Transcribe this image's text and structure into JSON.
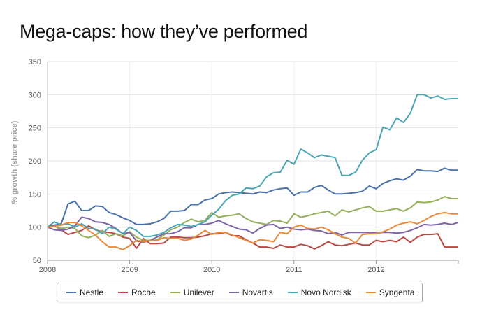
{
  "title": "Mega-caps: how they’ve performed",
  "chart_data": {
    "type": "line",
    "title": "Mega-caps: how they’ve performed",
    "ylabel": "% growth (share price)",
    "xlabel": "",
    "xlim": [
      2008,
      2013
    ],
    "ylim": [
      50,
      350
    ],
    "yticks": [
      50,
      100,
      150,
      200,
      250,
      300,
      350
    ],
    "xticks": [
      2008,
      2009,
      2010,
      2011,
      2012
    ],
    "grid": "horizontal",
    "legend_position": "bottom",
    "x": [
      2008.0,
      2008.083,
      2008.167,
      2008.25,
      2008.333,
      2008.417,
      2008.5,
      2008.583,
      2008.667,
      2008.75,
      2008.833,
      2008.917,
      2009.0,
      2009.083,
      2009.167,
      2009.25,
      2009.333,
      2009.417,
      2009.5,
      2009.583,
      2009.667,
      2009.75,
      2009.833,
      2009.917,
      2010.0,
      2010.083,
      2010.167,
      2010.25,
      2010.333,
      2010.417,
      2010.5,
      2010.583,
      2010.667,
      2010.75,
      2010.833,
      2010.917,
      2011.0,
      2011.083,
      2011.167,
      2011.25,
      2011.333,
      2011.417,
      2011.5,
      2011.583,
      2011.667,
      2011.75,
      2011.833,
      2011.917,
      2012.0,
      2012.083,
      2012.167,
      2012.25,
      2012.333,
      2012.417,
      2012.5,
      2012.583,
      2012.667,
      2012.75,
      2012.833,
      2012.917,
      2013.0
    ],
    "series": [
      {
        "name": "Nestle",
        "color": "#4a72a8",
        "values": [
          100,
          103,
          105,
          135,
          139,
          125,
          125,
          132,
          131,
          122,
          119,
          114,
          110,
          104,
          104,
          105,
          108,
          113,
          124,
          124,
          125,
          134,
          134,
          141,
          143,
          150,
          152,
          153,
          152,
          151,
          150,
          153,
          152,
          156,
          158,
          159,
          148,
          153,
          153,
          160,
          163,
          156,
          150,
          150,
          151,
          152,
          154,
          162,
          158,
          166,
          170,
          173,
          171,
          177,
          187,
          185,
          185,
          184,
          189,
          186,
          186
        ]
      },
      {
        "name": "Roche",
        "color": "#b84a44",
        "values": [
          100,
          102,
          96,
          89,
          92,
          95,
          102,
          96,
          93,
          92,
          90,
          85,
          83,
          68,
          83,
          75,
          75,
          76,
          85,
          85,
          84,
          84,
          85,
          87,
          90,
          90,
          92,
          87,
          87,
          81,
          76,
          70,
          70,
          68,
          73,
          70,
          70,
          74,
          72,
          67,
          72,
          78,
          73,
          72,
          74,
          76,
          73,
          73,
          80,
          78,
          80,
          78,
          85,
          77,
          85,
          89,
          89,
          90,
          70,
          70,
          70
        ]
      },
      {
        "name": "Unilever",
        "color": "#94b05a",
        "values": [
          100,
          101,
          98,
          100,
          98,
          87,
          84,
          88,
          95,
          86,
          90,
          87,
          93,
          85,
          80,
          80,
          81,
          88,
          96,
          100,
          107,
          112,
          108,
          110,
          122,
          115,
          117,
          118,
          120,
          113,
          108,
          106,
          104,
          110,
          109,
          106,
          120,
          115,
          117,
          120,
          122,
          124,
          117,
          126,
          123,
          126,
          129,
          131,
          124,
          124,
          126,
          128,
          124,
          129,
          138,
          137,
          138,
          141,
          146,
          143,
          143
        ]
      },
      {
        "name": "Novartis",
        "color": "#7d64a3",
        "values": [
          100,
          96,
          95,
          97,
          102,
          115,
          113,
          108,
          107,
          104,
          98,
          90,
          92,
          79,
          77,
          80,
          85,
          90,
          90,
          93,
          99,
          99,
          104,
          104,
          106,
          110,
          105,
          101,
          97,
          96,
          91,
          98,
          103,
          104,
          98,
          100,
          97,
          96,
          97,
          95,
          94,
          90,
          92,
          88,
          92,
          92,
          92,
          92,
          91,
          92,
          92,
          91,
          92,
          95,
          99,
          104,
          103,
          104,
          106,
          104,
          107
        ]
      },
      {
        "name": "Novo Nordisk",
        "color": "#4ba5b4",
        "values": [
          100,
          108,
          103,
          105,
          100,
          105,
          98,
          97,
          90,
          100,
          97,
          90,
          100,
          95,
          86,
          86,
          88,
          92,
          99,
          104,
          103,
          101,
          104,
          108,
          118,
          127,
          140,
          148,
          150,
          159,
          158,
          162,
          176,
          182,
          183,
          201,
          195,
          218,
          212,
          205,
          209,
          207,
          205,
          178,
          178,
          183,
          201,
          212,
          217,
          251,
          247,
          265,
          258,
          272,
          300,
          300,
          295,
          298,
          293,
          294,
          294
        ]
      },
      {
        "name": "Syngenta",
        "color": "#e88a3d",
        "values": [
          100,
          101,
          103,
          107,
          107,
          102,
          95,
          88,
          78,
          70,
          70,
          66,
          72,
          80,
          78,
          80,
          80,
          84,
          83,
          83,
          80,
          82,
          88,
          95,
          89,
          92,
          92,
          88,
          84,
          80,
          76,
          81,
          80,
          78,
          92,
          90,
          100,
          103,
          98,
          97,
          100,
          96,
          90,
          85,
          83,
          76,
          89,
          90,
          90,
          93,
          97,
          103,
          106,
          108,
          105,
          110,
          116,
          120,
          122,
          120,
          120
        ]
      }
    ]
  }
}
